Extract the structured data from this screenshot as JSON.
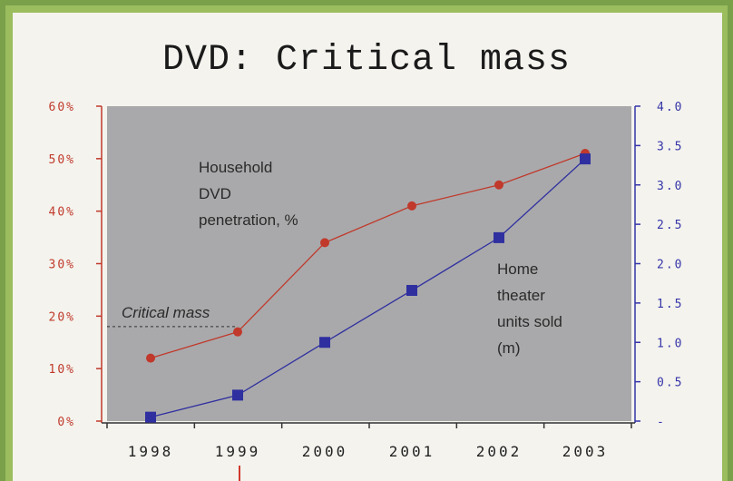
{
  "chart_data": {
    "type": "line",
    "title": "DVD: Critical mass",
    "categories": [
      "1998",
      "1999",
      "2000",
      "2001",
      "2002",
      "2003"
    ],
    "series": [
      {
        "name": "Household DVD penetration, %",
        "axis": "left",
        "color": "#c0392b",
        "values": [
          12,
          17,
          34,
          41,
          45,
          51
        ]
      },
      {
        "name": "Home theater units sold (m)",
        "axis": "right",
        "color": "#2f2fa0",
        "values": [
          0.05,
          0.33,
          1.0,
          1.66,
          2.33,
          3.33
        ]
      }
    ],
    "y_left": {
      "ticks": [
        "60%",
        "50%",
        "40%",
        "30%",
        "20%",
        "10%",
        "0%"
      ],
      "ylim": [
        0,
        60
      ]
    },
    "y_right": {
      "ticks": [
        "4.0",
        "3.5",
        "3.0",
        "2.5",
        "2.0",
        "1.5",
        "1.0",
        "0.5",
        "-"
      ],
      "ylim": [
        0,
        4
      ]
    },
    "annotations": {
      "series1_label": [
        "Household",
        "DVD",
        "penetration, %"
      ],
      "series2_label": [
        "Home",
        "theater",
        "units sold",
        "(m)"
      ],
      "critical_mass_label": "Critical mass",
      "critical_mass_value": 18
    },
    "plot_background": "#a9a9ab",
    "grid": false
  }
}
